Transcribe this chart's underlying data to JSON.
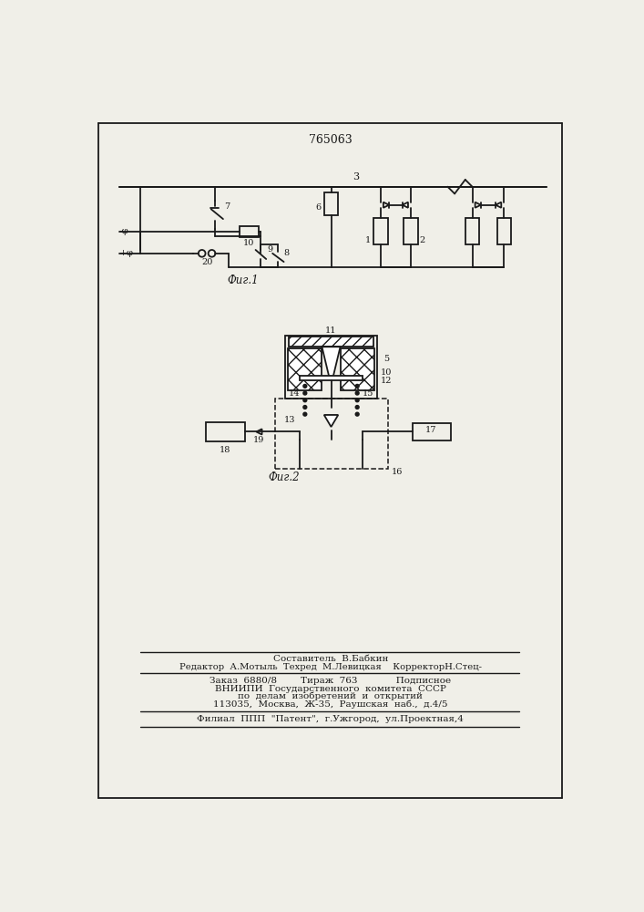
{
  "patent_number": "765063",
  "bg_color": "#f0efe8",
  "line_color": "#1a1a1a",
  "fig1_label": "Фиг.1",
  "fig2_label": "Фиг.2",
  "footer_lines": [
    "Составитель  В.Бабкин",
    "Редактор  А.Мотыль  Техред  М.Левицкая    КорректорН.Стец-",
    "Заказ  6880/8        Тираж  763             Подписное",
    "ВНИИПИ  Государственного  комитета  СССР",
    "по  делам  изобретений  и  открытий",
    "113035,  Москва,  Ж-35,  Раушская  наб.,  д.4/5",
    "Филиал  ППП  \"Патент\",  г.Ужгород,  ул.Проектная,4"
  ]
}
